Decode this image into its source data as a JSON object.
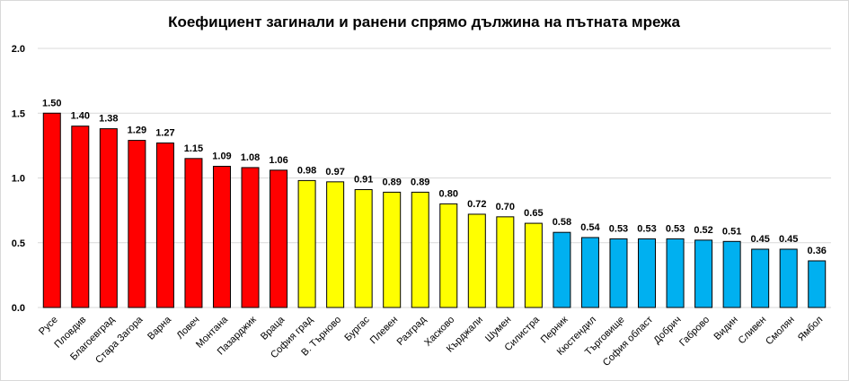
{
  "chart_data": {
    "type": "bar",
    "title": "Коефициент загинали и ранени спрямо дължина на пътната мрежа",
    "xlabel": "",
    "ylabel": "",
    "ylim": [
      0,
      2.0
    ],
    "yticks": [
      "0.0",
      "0.5",
      "1.0",
      "1.5",
      "2.0"
    ],
    "grid": true,
    "categories": [
      "Русе",
      "Пловдив",
      "Благоевград",
      "Стара Загора",
      "Варна",
      "Ловеч",
      "Монтана",
      "Пазарджик",
      "Враца",
      "София град",
      "В. Търново",
      "Бургас",
      "Плевен",
      "Разград",
      "Хасково",
      "Кърджали",
      "Шумен",
      "Силистра",
      "Перник",
      "Кюстендил",
      "Търговище",
      "София област",
      "Добрич",
      "Габрово",
      "Видин",
      "Сливен",
      "Смолян",
      "Ямбол"
    ],
    "values": [
      1.5,
      1.4,
      1.38,
      1.29,
      1.27,
      1.15,
      1.09,
      1.08,
      1.06,
      0.98,
      0.97,
      0.91,
      0.89,
      0.89,
      0.8,
      0.72,
      0.7,
      0.65,
      0.58,
      0.54,
      0.53,
      0.53,
      0.53,
      0.52,
      0.51,
      0.45,
      0.45,
      0.36
    ],
    "value_labels": [
      "1.50",
      "1.40",
      "1.38",
      "1.29",
      "1.27",
      "1.15",
      "1.09",
      "1.08",
      "1.06",
      "0.98",
      "0.97",
      "0.91",
      "0.89",
      "0.89",
      "0.80",
      "0.72",
      "0.70",
      "0.65",
      "0.58",
      "0.54",
      "0.53",
      "0.53",
      "0.53",
      "0.52",
      "0.51",
      "0.45",
      "0.45",
      "0.36"
    ],
    "bar_colors": [
      "#ff0000",
      "#ff0000",
      "#ff0000",
      "#ff0000",
      "#ff0000",
      "#ff0000",
      "#ff0000",
      "#ff0000",
      "#ff0000",
      "#ffff00",
      "#ffff00",
      "#ffff00",
      "#ffff00",
      "#ffff00",
      "#ffff00",
      "#ffff00",
      "#ffff00",
      "#ffff00",
      "#00b0f0",
      "#00b0f0",
      "#00b0f0",
      "#00b0f0",
      "#00b0f0",
      "#00b0f0",
      "#00b0f0",
      "#00b0f0",
      "#00b0f0",
      "#00b0f0"
    ],
    "gridline_color": "#d9d9d9",
    "bar_outline_color": "#000000"
  }
}
